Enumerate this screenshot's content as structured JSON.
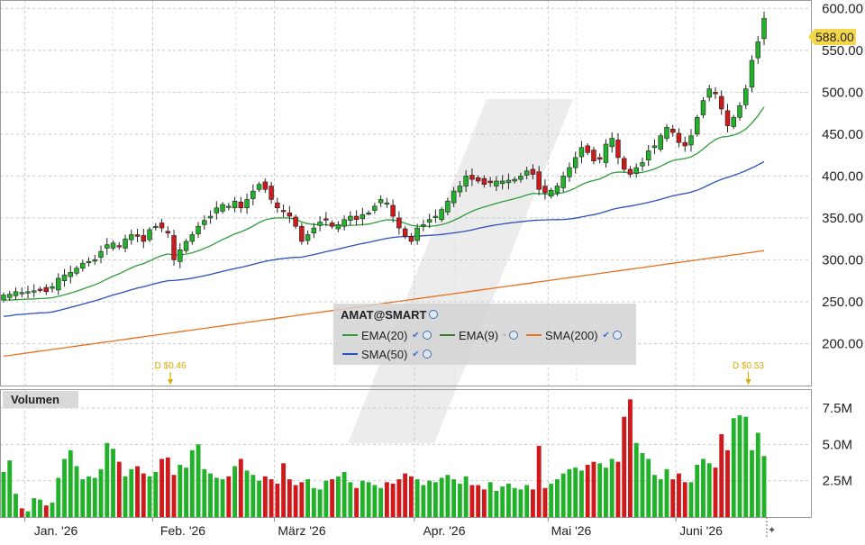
{
  "chart_data": {
    "type": "candlestick",
    "symbol": "AMAT@SMART",
    "x_labels": [
      "Jan. '26",
      "Feb. '26",
      "März '26",
      "Apr. '26",
      "Mai '26",
      "Juni '26"
    ],
    "price_axis": {
      "ticks": [
        "600.00",
        "550.00",
        "500.00",
        "450.00",
        "400.00",
        "350.00",
        "300.00",
        "250.00",
        "200.00"
      ],
      "range": [
        150,
        610
      ]
    },
    "volume_axis": {
      "ticks": [
        "7.5M",
        "5.0M",
        "2.5M"
      ],
      "range": [
        0,
        8.8
      ]
    },
    "last_price": "588.00",
    "legend": [
      {
        "name": "EMA(20)",
        "color": "#2e9e3a",
        "checked": true
      },
      {
        "name": "EMA(9)",
        "color": "#3a7a2a",
        "checked": false
      },
      {
        "name": "SMA(200)",
        "color": "#e8701e",
        "checked": true
      },
      {
        "name": "SMA(50)",
        "color": "#2a4fc0",
        "checked": true
      }
    ],
    "dividends": [
      {
        "label": "D $0.46",
        "date_index": 28
      },
      {
        "label": "D $0.53",
        "date_index": 123
      }
    ],
    "volume_title": "Volumen",
    "closes": [
      258,
      259,
      262,
      261,
      262,
      263,
      264,
      262,
      268,
      278,
      282,
      285,
      290,
      296,
      298,
      300,
      310,
      318,
      320,
      316,
      325,
      330,
      328,
      322,
      336,
      340,
      338,
      332,
      300,
      312,
      322,
      330,
      340,
      347,
      352,
      362,
      366,
      364,
      370,
      362,
      372,
      382,
      390,
      384,
      372,
      362,
      358,
      352,
      340,
      322,
      330,
      338,
      345,
      348,
      340,
      342,
      348,
      352,
      348,
      354,
      356,
      364,
      372,
      368,
      352,
      338,
      328,
      322,
      338,
      342,
      348,
      352,
      360,
      370,
      382,
      388,
      400,
      396,
      394,
      390,
      392,
      394,
      394,
      395,
      396,
      400,
      406,
      402,
      384,
      380,
      383,
      388,
      400,
      410,
      422,
      434,
      428,
      418,
      420,
      438,
      445,
      422,
      408,
      402,
      410,
      416,
      430,
      436,
      448,
      458,
      452,
      440,
      436,
      448,
      470,
      490,
      504,
      498,
      480,
      460,
      470,
      484,
      504,
      538,
      560,
      588
    ],
    "volume": [
      3.1,
      3.9,
      1.6,
      0.6,
      0.4,
      1.3,
      1.2,
      0.8,
      1.0,
      2.7,
      4.0,
      4.6,
      3.5,
      2.6,
      2.8,
      2.7,
      3.3,
      5.1,
      4.7,
      3.8,
      2.8,
      3.3,
      3.5,
      3.0,
      2.8,
      3.1,
      4.0,
      4.1,
      2.9,
      3.6,
      3.4,
      4.6,
      5.0,
      3.3,
      3.0,
      2.7,
      2.6,
      2.8,
      3.5,
      4.0,
      3.2,
      2.9,
      2.5,
      2.8,
      2.6,
      2.3,
      3.7,
      2.6,
      2.2,
      2.4,
      2.6,
      2.0,
      1.9,
      2.5,
      2.6,
      2.8,
      3.1,
      2.4,
      2.0,
      2.5,
      2.4,
      2.2,
      2.0,
      2.4,
      2.3,
      2.6,
      3.0,
      2.8,
      2.6,
      2.2,
      2.5,
      2.4,
      2.7,
      2.9,
      2.6,
      2.3,
      2.8,
      2.2,
      2.2,
      1.9,
      2.4,
      1.8,
      2.1,
      2.3,
      2.0,
      1.9,
      2.2,
      1.9,
      4.9,
      2.0,
      2.3,
      2.6,
      3.0,
      3.3,
      3.4,
      3.2,
      3.6,
      3.8,
      3.7,
      3.4,
      4.0,
      3.8,
      6.9,
      8.1,
      5.1,
      4.4,
      4.0,
      2.9,
      2.6,
      3.3,
      2.6,
      3.0,
      2.4,
      2.4,
      3.6,
      4.0,
      3.7,
      3.4,
      5.7,
      4.6,
      6.8,
      7.0,
      6.9,
      4.6,
      5.8,
      4.2
    ]
  }
}
